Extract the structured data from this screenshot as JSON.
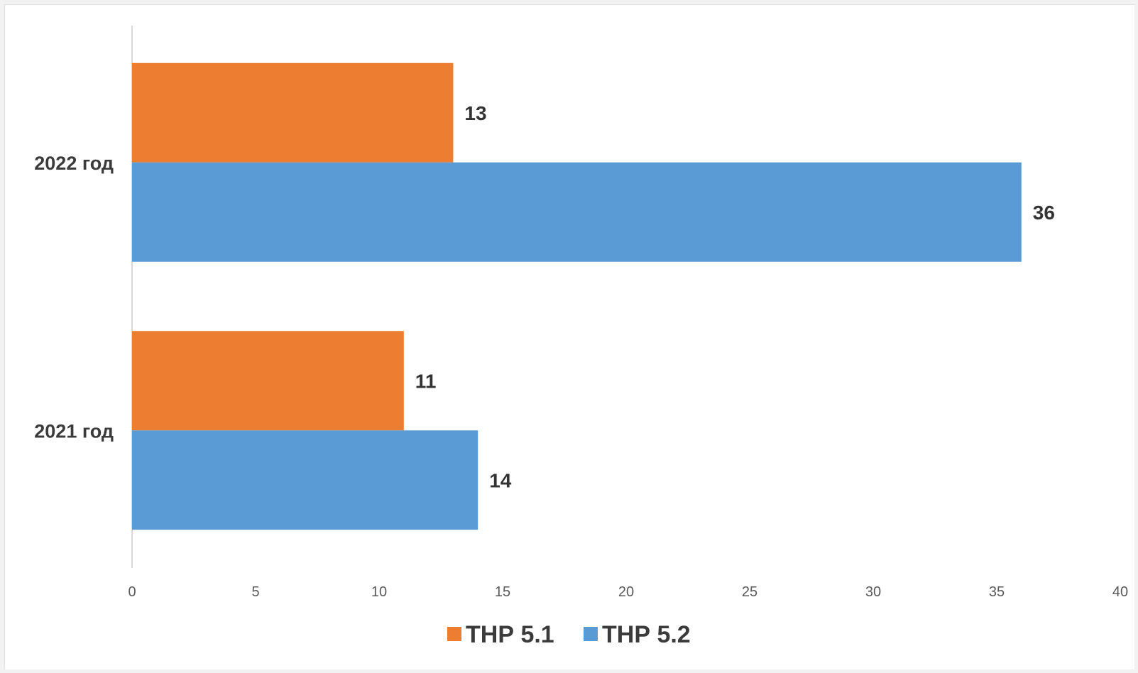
{
  "chart_data": {
    "type": "bar",
    "orientation": "horizontal",
    "categories": [
      "2021 год",
      "2022 год"
    ],
    "series": [
      {
        "name": "ТНР 5.1",
        "values": [
          11,
          13
        ],
        "color": "#ED7D31"
      },
      {
        "name": "ТНР 5.2",
        "values": [
          14,
          36
        ],
        "color": "#5B9BD5"
      }
    ],
    "xlim": [
      0,
      40
    ],
    "x_ticks": [
      0,
      5,
      10,
      15,
      20,
      25,
      30,
      35,
      40
    ],
    "title": "",
    "xlabel": "",
    "ylabel": "",
    "grid": false,
    "data_labels": true,
    "legend_position": "bottom"
  }
}
